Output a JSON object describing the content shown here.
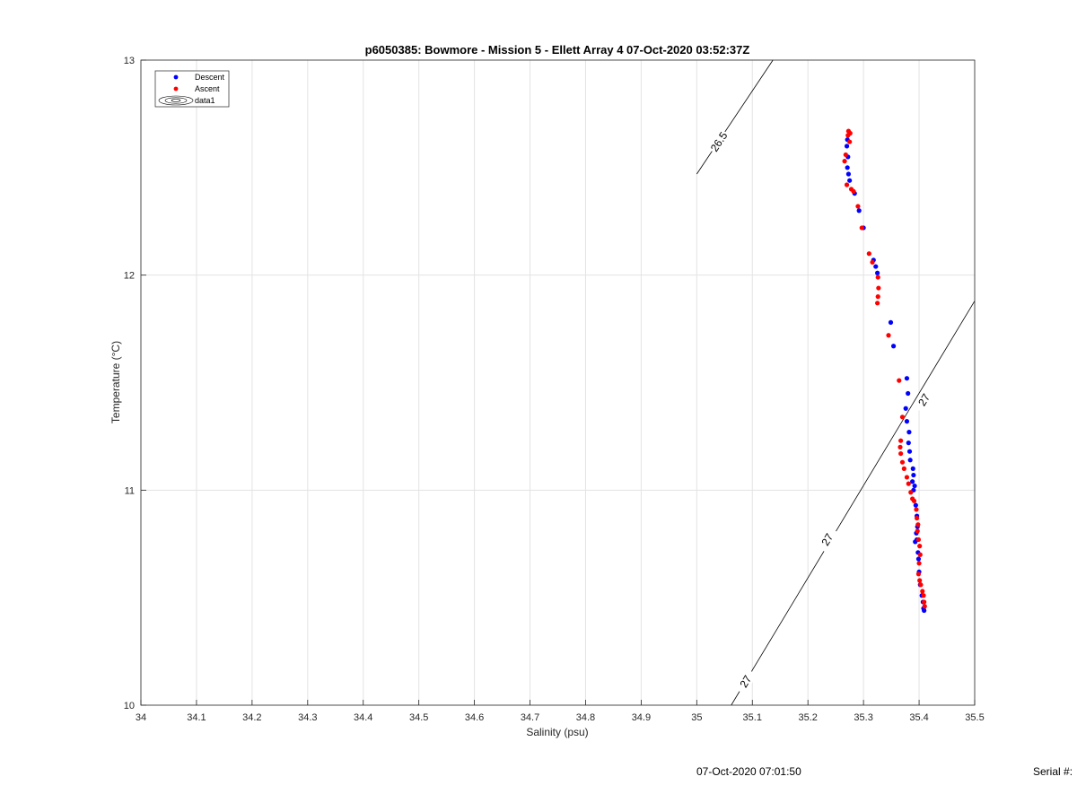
{
  "chart_data": {
    "type": "scatter",
    "title": "p6050385: Bowmore - Mission 5 - Ellett Array 4 07-Oct-2020 03:52:37Z",
    "xlabel": "Salinity (psu)",
    "ylabel": "Temperature (°C)",
    "xlim": [
      34,
      35.5
    ],
    "ylim": [
      10,
      13
    ],
    "x_ticks": [
      "34",
      "34.1",
      "34.2",
      "34.3",
      "34.4",
      "34.5",
      "34.6",
      "34.7",
      "34.8",
      "34.9",
      "35",
      "35.1",
      "35.2",
      "35.3",
      "35.4",
      "35.5"
    ],
    "y_ticks": [
      "10",
      "11",
      "12",
      "13"
    ],
    "grid": true,
    "legend_position": "top-left",
    "legend": [
      "Descent",
      "Ascent",
      "data1"
    ],
    "series": [
      {
        "name": "Descent",
        "color": "#0000ff",
        "points": [
          [
            35.271,
            12.63
          ],
          [
            35.27,
            12.6
          ],
          [
            35.272,
            12.55
          ],
          [
            35.271,
            12.5
          ],
          [
            35.273,
            12.47
          ],
          [
            35.275,
            12.44
          ],
          [
            35.284,
            12.38
          ],
          [
            35.292,
            12.3
          ],
          [
            35.3,
            12.22
          ],
          [
            35.318,
            12.07
          ],
          [
            35.322,
            12.04
          ],
          [
            35.325,
            12.01
          ],
          [
            35.349,
            11.78
          ],
          [
            35.354,
            11.67
          ],
          [
            35.378,
            11.52
          ],
          [
            35.38,
            11.45
          ],
          [
            35.376,
            11.38
          ],
          [
            35.378,
            11.32
          ],
          [
            35.382,
            11.27
          ],
          [
            35.381,
            11.22
          ],
          [
            35.383,
            11.18
          ],
          [
            35.384,
            11.14
          ],
          [
            35.389,
            11.1
          ],
          [
            35.39,
            11.07
          ],
          [
            35.388,
            11.04
          ],
          [
            35.392,
            11.02
          ],
          [
            35.39,
            11.0
          ],
          [
            35.394,
            10.93
          ],
          [
            35.396,
            10.88
          ],
          [
            35.397,
            10.83
          ],
          [
            35.395,
            10.8
          ],
          [
            35.396,
            10.77
          ],
          [
            35.393,
            10.76
          ],
          [
            35.398,
            10.71
          ],
          [
            35.399,
            10.68
          ],
          [
            35.4,
            10.62
          ],
          [
            35.402,
            10.56
          ],
          [
            35.405,
            10.51
          ],
          [
            35.407,
            10.48
          ],
          [
            35.408,
            10.45
          ],
          [
            35.409,
            10.44
          ]
        ]
      },
      {
        "name": "Ascent",
        "color": "#ff0000",
        "points": [
          [
            35.273,
            12.67
          ],
          [
            35.276,
            12.66
          ],
          [
            35.272,
            12.65
          ],
          [
            35.275,
            12.62
          ],
          [
            35.268,
            12.56
          ],
          [
            35.266,
            12.53
          ],
          [
            35.27,
            12.42
          ],
          [
            35.278,
            12.4
          ],
          [
            35.282,
            12.39
          ],
          [
            35.29,
            12.32
          ],
          [
            35.297,
            12.22
          ],
          [
            35.31,
            12.1
          ],
          [
            35.316,
            12.06
          ],
          [
            35.326,
            11.99
          ],
          [
            35.327,
            11.94
          ],
          [
            35.326,
            11.9
          ],
          [
            35.325,
            11.87
          ],
          [
            35.345,
            11.72
          ],
          [
            35.364,
            11.51
          ],
          [
            35.37,
            11.34
          ],
          [
            35.367,
            11.23
          ],
          [
            35.366,
            11.2
          ],
          [
            35.367,
            11.17
          ],
          [
            35.37,
            11.13
          ],
          [
            35.373,
            11.1
          ],
          [
            35.378,
            11.06
          ],
          [
            35.381,
            11.03
          ],
          [
            35.385,
            10.99
          ],
          [
            35.388,
            10.96
          ],
          [
            35.391,
            10.95
          ],
          [
            35.395,
            10.91
          ],
          [
            35.396,
            10.87
          ],
          [
            35.398,
            10.84
          ],
          [
            35.397,
            10.81
          ],
          [
            35.399,
            10.77
          ],
          [
            35.401,
            10.74
          ],
          [
            35.402,
            10.7
          ],
          [
            35.4,
            10.66
          ],
          [
            35.399,
            10.61
          ],
          [
            35.401,
            10.58
          ],
          [
            35.403,
            10.56
          ],
          [
            35.406,
            10.53
          ],
          [
            35.408,
            10.51
          ],
          [
            35.409,
            10.48
          ],
          [
            35.41,
            10.46
          ]
        ]
      }
    ],
    "contours": [
      {
        "name": "data1",
        "level_label": "26.5",
        "color": "#000000",
        "points": [
          [
            35.0,
            12.47
          ],
          [
            35.137,
            13.0
          ]
        ],
        "labels": [
          {
            "text": "26.5",
            "at": [
              35.04,
              12.62
            ]
          }
        ]
      },
      {
        "name": "data1",
        "level_label": "27",
        "color": "#000000",
        "points": [
          [
            35.062,
            10.0
          ],
          [
            35.5,
            11.88
          ]
        ],
        "labels": [
          {
            "text": "27",
            "at": [
              35.088,
              10.11
            ]
          },
          {
            "text": "27",
            "at": [
              35.235,
              10.77
            ]
          },
          {
            "text": "27",
            "at": [
              35.409,
              11.42
            ]
          }
        ]
      }
    ]
  },
  "footer": {
    "timestamp": "07-Oct-2020 07:01:50",
    "serial_label": "Serial #:"
  }
}
